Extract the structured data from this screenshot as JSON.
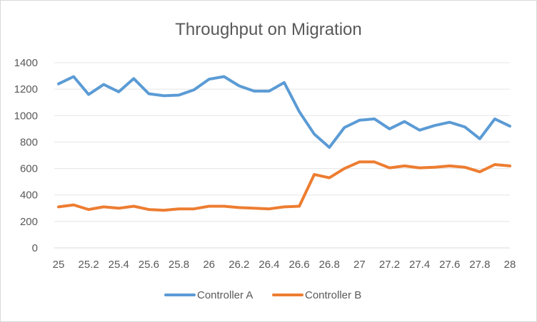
{
  "chart_data": {
    "type": "line",
    "title": "Throughput on Migration",
    "xlabel": "",
    "ylabel": "",
    "xlim": [
      25,
      28
    ],
    "ylim": [
      0,
      1400
    ],
    "y_ticks": [
      0,
      200,
      400,
      600,
      800,
      1000,
      1200,
      1400
    ],
    "x_tick_labels": [
      "25",
      "25.2",
      "25.4",
      "25.6",
      "25.8",
      "26",
      "26.2",
      "26.4",
      "26.6",
      "26.8",
      "27",
      "27.2",
      "27.4",
      "27.6",
      "27.8",
      "28"
    ],
    "grid": true,
    "legend_position": "bottom",
    "x": [
      25,
      25.1,
      25.2,
      25.3,
      25.4,
      25.5,
      25.6,
      25.7,
      25.8,
      25.9,
      26,
      26.1,
      26.2,
      26.3,
      26.4,
      26.5,
      26.6,
      26.7,
      26.8,
      26.9,
      27,
      27.1,
      27.2,
      27.3,
      27.4,
      27.5,
      27.6,
      27.7,
      27.8,
      27.9,
      28
    ],
    "series": [
      {
        "name": "Controller A",
        "color": "#5b9bd5",
        "values": [
          1240,
          1295,
          1160,
          1235,
          1180,
          1280,
          1165,
          1150,
          1155,
          1195,
          1275,
          1295,
          1225,
          1185,
          1185,
          1250,
          1030,
          860,
          760,
          910,
          965,
          975,
          900,
          955,
          890,
          925,
          950,
          915,
          825,
          975,
          920
        ]
      },
      {
        "name": "Controller B",
        "color": "#ed7d31",
        "values": [
          310,
          325,
          290,
          310,
          300,
          315,
          290,
          285,
          295,
          295,
          315,
          315,
          305,
          300,
          295,
          310,
          315,
          555,
          530,
          600,
          650,
          650,
          605,
          620,
          605,
          610,
          620,
          610,
          575,
          630,
          620
        ]
      }
    ]
  }
}
